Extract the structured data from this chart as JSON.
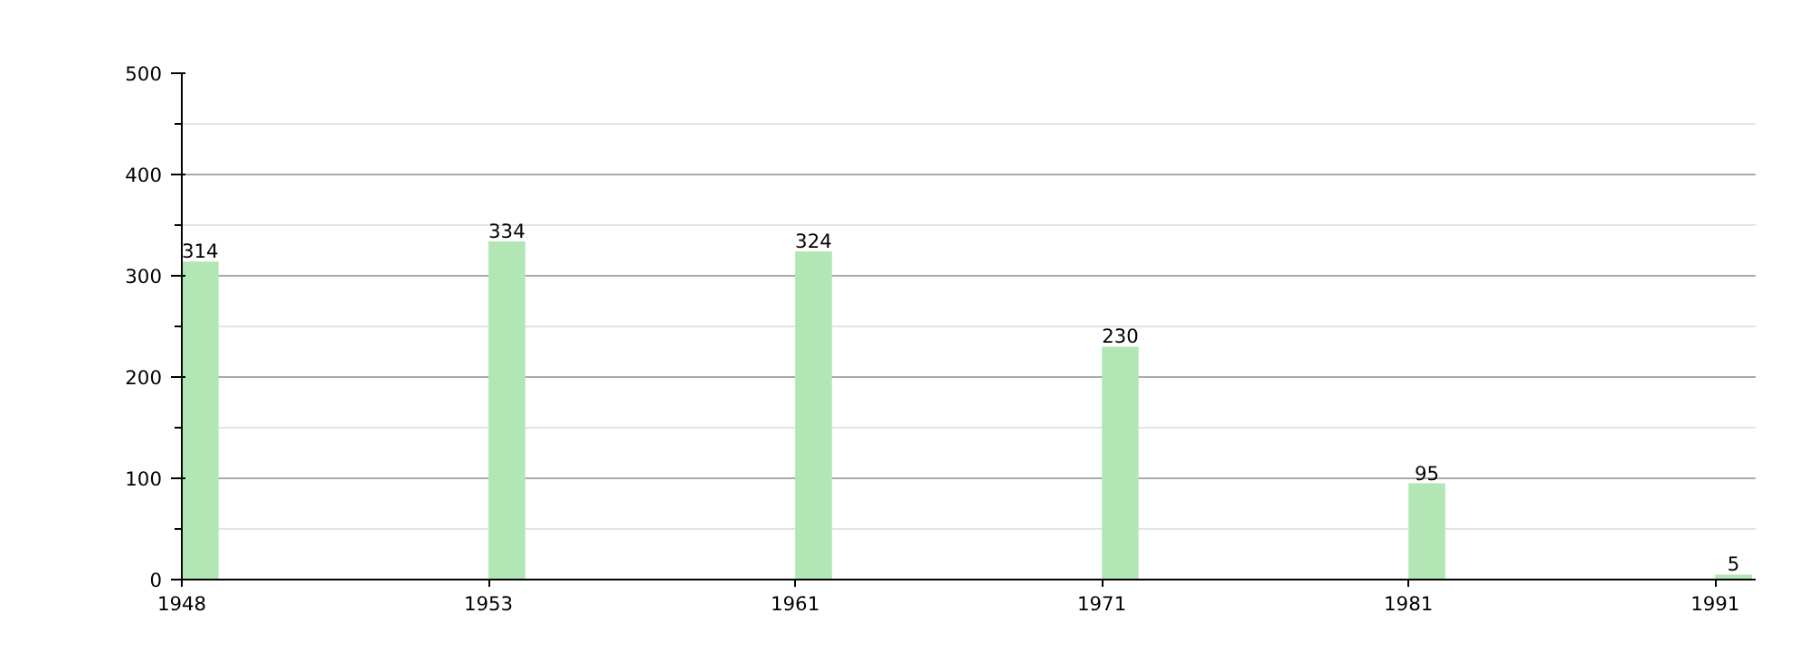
{
  "chart_data": {
    "type": "bar",
    "categories": [
      "1948",
      "1953",
      "1961",
      "1971",
      "1981",
      "1991"
    ],
    "values": [
      314,
      334,
      324,
      230,
      95,
      5
    ],
    "color": "#b3e6b5",
    "ylim": [
      0,
      500
    ],
    "yticks": [
      0,
      100,
      200,
      300,
      400,
      500
    ],
    "grid": "y",
    "data_labels": true
  }
}
